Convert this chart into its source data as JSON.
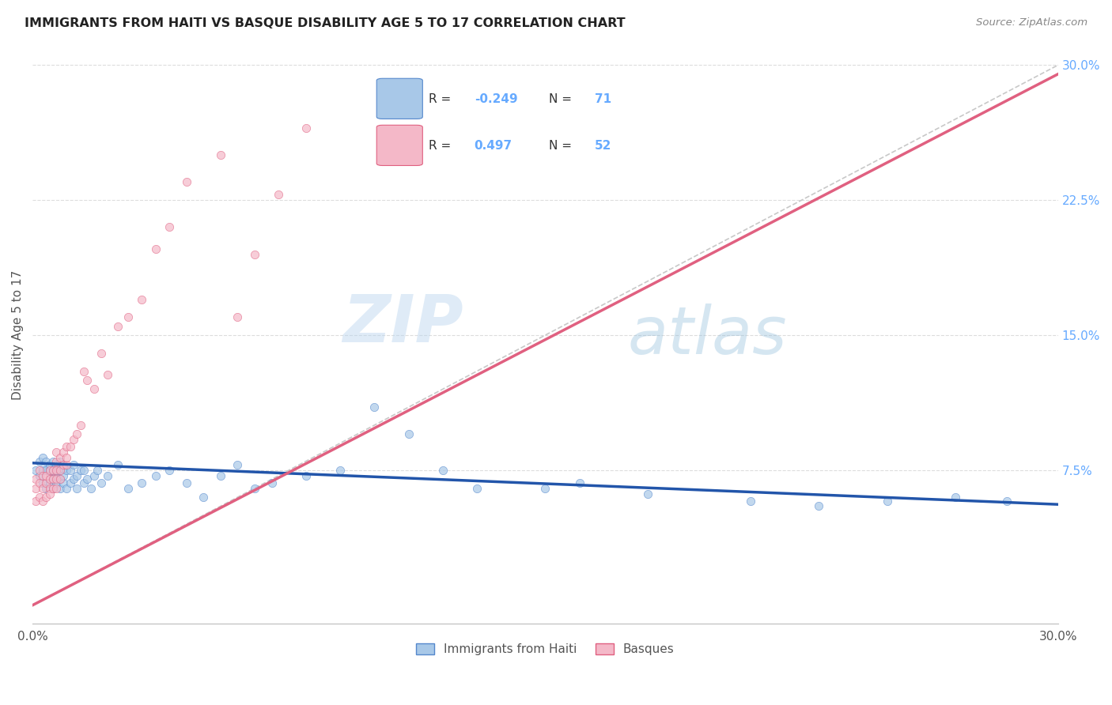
{
  "title": "IMMIGRANTS FROM HAITI VS BASQUE DISABILITY AGE 5 TO 17 CORRELATION CHART",
  "source": "Source: ZipAtlas.com",
  "ylabel": "Disability Age 5 to 17",
  "xlim": [
    0.0,
    0.3
  ],
  "ylim": [
    -0.01,
    0.31
  ],
  "x_ticks": [
    0.0,
    0.05,
    0.1,
    0.15,
    0.2,
    0.25,
    0.3
  ],
  "x_tick_labels": [
    "0.0%",
    "",
    "",
    "",
    "",
    "",
    "30.0%"
  ],
  "y_ticks_right": [
    0.075,
    0.15,
    0.225,
    0.3
  ],
  "y_tick_labels_right": [
    "7.5%",
    "15.0%",
    "22.5%",
    "30.0%"
  ],
  "color_haiti": "#a8c8e8",
  "color_basque": "#f4b8c8",
  "color_haiti_edge": "#5588cc",
  "color_basque_edge": "#e06080",
  "color_haiti_line": "#2255aa",
  "color_basque_line": "#e06080",
  "color_diagonal": "#c8c8c8",
  "color_right_axis": "#66aaff",
  "watermark_zip": "ZIP",
  "watermark_atlas": "atlas",
  "haiti_scatter_x": [
    0.001,
    0.002,
    0.002,
    0.003,
    0.003,
    0.003,
    0.004,
    0.004,
    0.004,
    0.005,
    0.005,
    0.005,
    0.005,
    0.006,
    0.006,
    0.006,
    0.006,
    0.006,
    0.007,
    0.007,
    0.007,
    0.007,
    0.008,
    0.008,
    0.008,
    0.008,
    0.009,
    0.009,
    0.009,
    0.01,
    0.01,
    0.011,
    0.011,
    0.012,
    0.012,
    0.013,
    0.013,
    0.014,
    0.015,
    0.015,
    0.016,
    0.017,
    0.018,
    0.019,
    0.02,
    0.022,
    0.025,
    0.028,
    0.032,
    0.036,
    0.04,
    0.045,
    0.05,
    0.055,
    0.06,
    0.065,
    0.07,
    0.08,
    0.09,
    0.1,
    0.11,
    0.12,
    0.13,
    0.15,
    0.16,
    0.18,
    0.21,
    0.23,
    0.25,
    0.27,
    0.285
  ],
  "haiti_scatter_y": [
    0.075,
    0.072,
    0.08,
    0.068,
    0.075,
    0.082,
    0.065,
    0.075,
    0.08,
    0.07,
    0.075,
    0.078,
    0.068,
    0.065,
    0.072,
    0.075,
    0.08,
    0.07,
    0.068,
    0.072,
    0.075,
    0.078,
    0.065,
    0.07,
    0.075,
    0.08,
    0.068,
    0.072,
    0.076,
    0.065,
    0.075,
    0.068,
    0.075,
    0.07,
    0.078,
    0.065,
    0.072,
    0.075,
    0.068,
    0.075,
    0.07,
    0.065,
    0.072,
    0.075,
    0.068,
    0.072,
    0.078,
    0.065,
    0.068,
    0.072,
    0.075,
    0.068,
    0.06,
    0.072,
    0.078,
    0.065,
    0.068,
    0.072,
    0.075,
    0.11,
    0.095,
    0.075,
    0.065,
    0.065,
    0.068,
    0.062,
    0.058,
    0.055,
    0.058,
    0.06,
    0.058
  ],
  "basque_scatter_x": [
    0.001,
    0.001,
    0.001,
    0.002,
    0.002,
    0.002,
    0.003,
    0.003,
    0.003,
    0.004,
    0.004,
    0.004,
    0.005,
    0.005,
    0.005,
    0.005,
    0.006,
    0.006,
    0.006,
    0.007,
    0.007,
    0.007,
    0.007,
    0.007,
    0.008,
    0.008,
    0.008,
    0.009,
    0.009,
    0.01,
    0.01,
    0.01,
    0.011,
    0.012,
    0.013,
    0.014,
    0.015,
    0.016,
    0.018,
    0.02,
    0.022,
    0.025,
    0.028,
    0.032,
    0.036,
    0.04,
    0.045,
    0.055,
    0.06,
    0.065,
    0.072,
    0.08
  ],
  "basque_scatter_y": [
    0.065,
    0.07,
    0.058,
    0.068,
    0.075,
    0.06,
    0.065,
    0.072,
    0.058,
    0.068,
    0.072,
    0.06,
    0.065,
    0.07,
    0.075,
    0.062,
    0.065,
    0.07,
    0.075,
    0.065,
    0.07,
    0.075,
    0.08,
    0.085,
    0.07,
    0.075,
    0.082,
    0.078,
    0.085,
    0.078,
    0.082,
    0.088,
    0.088,
    0.092,
    0.095,
    0.1,
    0.13,
    0.125,
    0.12,
    0.14,
    0.128,
    0.155,
    0.16,
    0.17,
    0.198,
    0.21,
    0.235,
    0.25,
    0.16,
    0.195,
    0.228,
    0.265
  ],
  "haiti_line_x": [
    0.0,
    0.3
  ],
  "haiti_line_y": [
    0.079,
    0.056
  ],
  "basque_line_x": [
    0.0,
    0.3
  ],
  "basque_line_y": [
    0.0,
    0.295
  ],
  "diagonal_line_x": [
    0.0,
    0.3
  ],
  "diagonal_line_y": [
    0.0,
    0.3
  ]
}
